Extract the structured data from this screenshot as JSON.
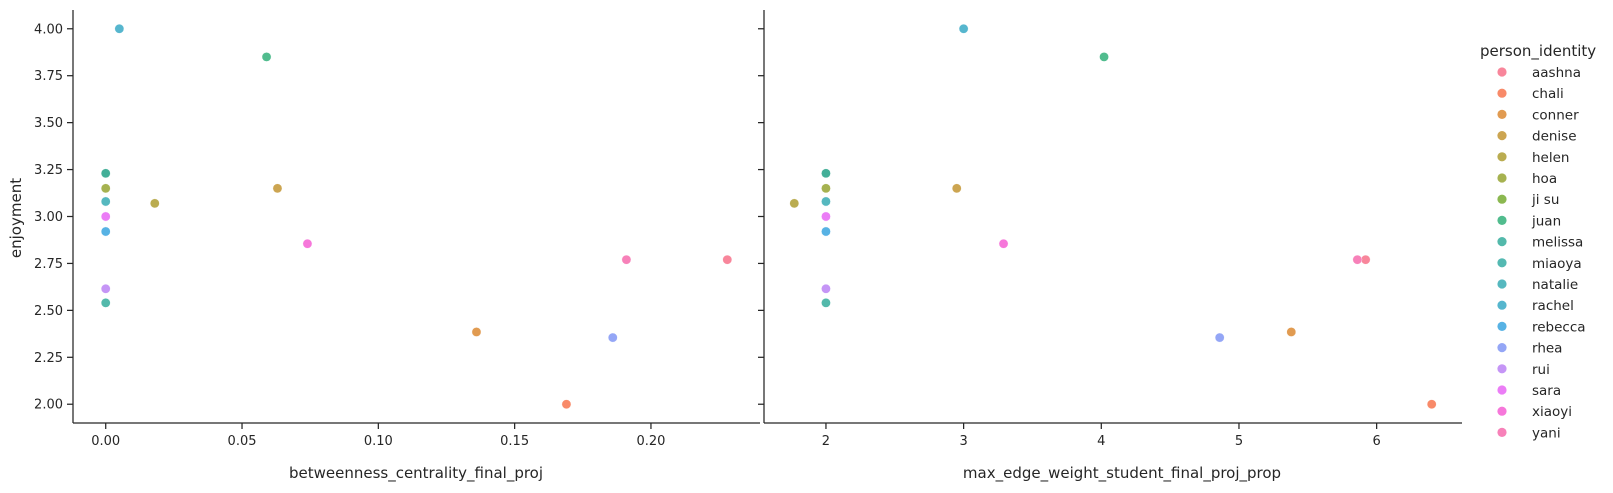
{
  "chart_data": {
    "type": "scatter",
    "ylabel": "enjoyment",
    "legend_title": "person_identity",
    "legend_placement": "right",
    "grid": false,
    "colors": {
      "aashna": "#f77189",
      "chali": "#f7754f",
      "conner": "#dc8932",
      "denise": "#c39532",
      "helen": "#ae9d31",
      "hoa": "#97a431",
      "ji su": "#77ab31",
      "juan": "#33b07a",
      "melissa": "#35ad9c",
      "miaoya": "#36ada4",
      "natalie": "#37abb4",
      "rachel": "#38a9c5",
      "rebecca": "#3aa5df",
      "rhea": "#8197f4",
      "rui": "#bb83f4",
      "sara": "#e866f4",
      "xiaoyi": "#f55fd3",
      "yani": "#f66bad"
    },
    "legend": [
      "aashna",
      "chali",
      "conner",
      "denise",
      "helen",
      "hoa",
      "ji su",
      "juan",
      "melissa",
      "miaoya",
      "natalie",
      "rachel",
      "rebecca",
      "rhea",
      "rui",
      "sara",
      "xiaoyi",
      "yani"
    ],
    "panels": [
      {
        "xlabel": "betweenness_centrality_final_proj",
        "xlim": [
          -0.012,
          0.24
        ],
        "ylim": [
          1.9,
          4.1
        ],
        "xticks": [
          0.0,
          0.05,
          0.1,
          0.15,
          0.2
        ],
        "xtick_labels": [
          "0.00",
          "0.05",
          "0.10",
          "0.15",
          "0.20"
        ],
        "yticks": [
          2.0,
          2.25,
          2.5,
          2.75,
          3.0,
          3.25,
          3.5,
          3.75,
          4.0
        ],
        "ytick_labels": [
          "2.00",
          "2.25",
          "2.50",
          "2.75",
          "3.00",
          "3.25",
          "3.50",
          "3.75",
          "4.00"
        ],
        "points": [
          {
            "person": "aashna",
            "x": 0.228,
            "y": 2.77
          },
          {
            "person": "chali",
            "x": 0.169,
            "y": 2.0
          },
          {
            "person": "conner",
            "x": 0.136,
            "y": 2.385
          },
          {
            "person": "denise",
            "x": 0.063,
            "y": 3.15
          },
          {
            "person": "helen",
            "x": 0.018,
            "y": 3.07
          },
          {
            "person": "hoa",
            "x": 0.0,
            "y": 3.15
          },
          {
            "person": "ji su",
            "x": 0.0,
            "y": 3.23
          },
          {
            "person": "juan",
            "x": 0.059,
            "y": 3.85
          },
          {
            "person": "melissa",
            "x": 0.0,
            "y": 2.54
          },
          {
            "person": "miaoya",
            "x": 0.0,
            "y": 3.23
          },
          {
            "person": "natalie",
            "x": 0.0,
            "y": 3.08
          },
          {
            "person": "rachel",
            "x": 0.005,
            "y": 4.0
          },
          {
            "person": "rebecca",
            "x": 0.0,
            "y": 2.92
          },
          {
            "person": "rhea",
            "x": 0.186,
            "y": 2.355
          },
          {
            "person": "rui",
            "x": 0.0,
            "y": 2.615
          },
          {
            "person": "sara",
            "x": 0.0,
            "y": 3.0
          },
          {
            "person": "xiaoyi",
            "x": 0.074,
            "y": 2.855
          },
          {
            "person": "yani",
            "x": 0.191,
            "y": 2.77
          }
        ]
      },
      {
        "xlabel": "max_edge_weight_student_final_proj_prop",
        "xlim": [
          1.55,
          6.62
        ],
        "ylim": [
          1.9,
          4.1
        ],
        "xticks": [
          2,
          3,
          4,
          5,
          6
        ],
        "xtick_labels": [
          "2",
          "3",
          "4",
          "5",
          "6"
        ],
        "points": [
          {
            "person": "aashna",
            "x": 5.92,
            "y": 2.77
          },
          {
            "person": "chali",
            "x": 6.4,
            "y": 2.0
          },
          {
            "person": "conner",
            "x": 5.38,
            "y": 2.385
          },
          {
            "person": "denise",
            "x": 2.95,
            "y": 3.15
          },
          {
            "person": "helen",
            "x": 1.77,
            "y": 3.07
          },
          {
            "person": "hoa",
            "x": 2.0,
            "y": 3.15
          },
          {
            "person": "ji su",
            "x": 2.0,
            "y": 3.23
          },
          {
            "person": "juan",
            "x": 4.02,
            "y": 3.85
          },
          {
            "person": "melissa",
            "x": 2.0,
            "y": 2.54
          },
          {
            "person": "miaoya",
            "x": 2.0,
            "y": 3.23
          },
          {
            "person": "natalie",
            "x": 2.0,
            "y": 3.08
          },
          {
            "person": "rachel",
            "x": 3.0,
            "y": 4.0
          },
          {
            "person": "rebecca",
            "x": 2.0,
            "y": 2.92
          },
          {
            "person": "rhea",
            "x": 4.86,
            "y": 2.355
          },
          {
            "person": "rui",
            "x": 2.0,
            "y": 2.615
          },
          {
            "person": "sara",
            "x": 2.0,
            "y": 3.0
          },
          {
            "person": "xiaoyi",
            "x": 3.29,
            "y": 2.855
          },
          {
            "person": "yani",
            "x": 5.86,
            "y": 2.77
          }
        ]
      }
    ]
  }
}
